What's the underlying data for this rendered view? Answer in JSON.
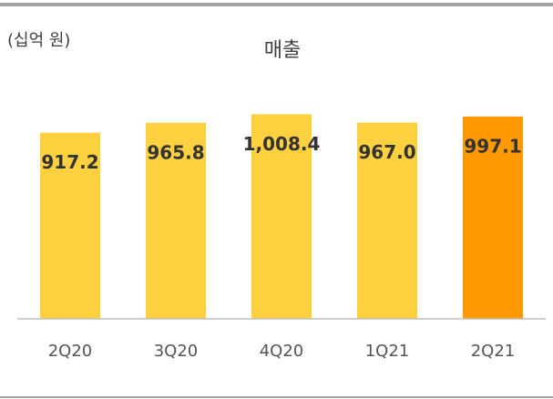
{
  "chart_data": {
    "type": "bar",
    "title": "매출",
    "unit_label": "(십억 원)",
    "categories": [
      "2Q20",
      "3Q20",
      "4Q20",
      "1Q21",
      "2Q21"
    ],
    "values": [
      917.2,
      965.8,
      1008.4,
      967.0,
      997.1
    ],
    "value_labels": [
      "917.2",
      "965.8",
      "1,008.4",
      "967.0",
      "997.1"
    ],
    "colors": [
      "#ffd040",
      "#ffd040",
      "#ffd040",
      "#ffd040",
      "#ff9900"
    ],
    "ylim": [
      0,
      1100
    ]
  }
}
